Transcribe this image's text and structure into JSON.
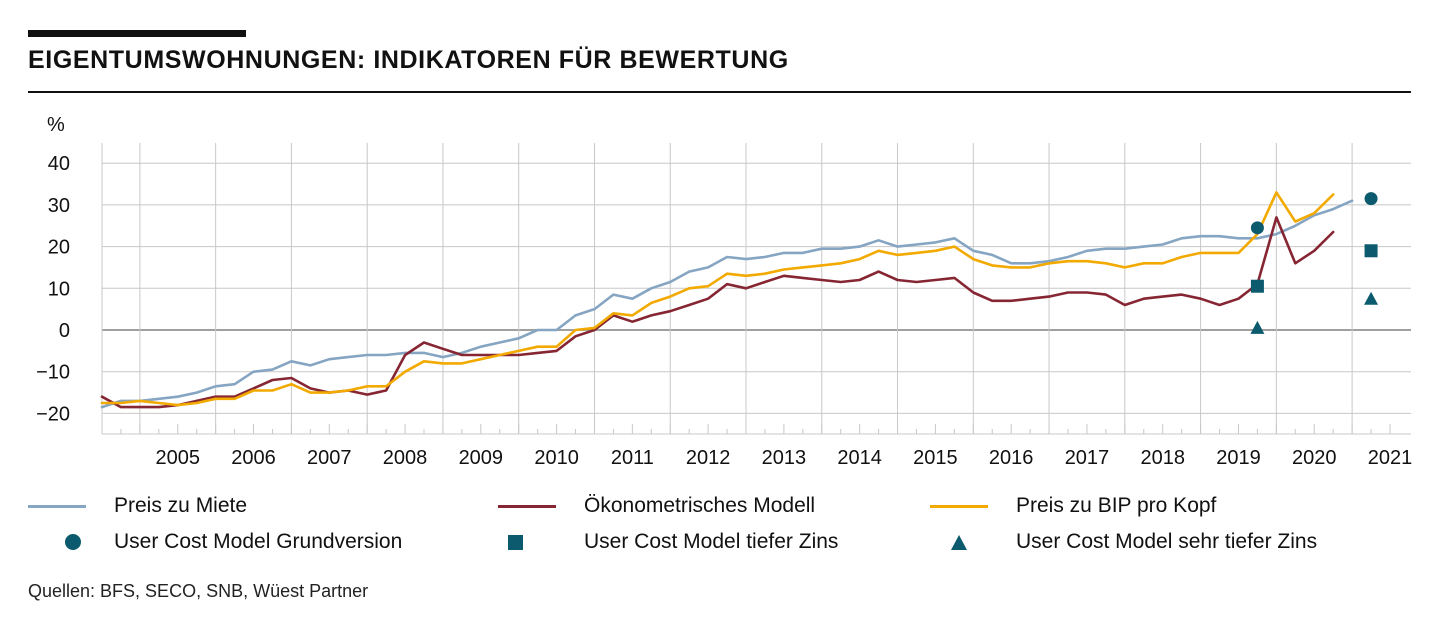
{
  "title": "EIGENTUMSWOHNUNGEN: INDIKATOREN FÜR BEWERTUNG",
  "source": "Quellen: BFS, SECO, SNB, Wüest Partner",
  "colors": {
    "miete": "#86a5c2",
    "oekonometrisch": "#862633",
    "bip": "#f2a900",
    "ucm": "#0b5a6e",
    "grid": "#c8c8c8",
    "zero": "#a0a0a0"
  },
  "legend": {
    "miete": "Preis zu Miete",
    "oekonometrisch": "Ökonometrisches Modell",
    "bip": "Preis zu BIP pro Kopf",
    "ucm_grund": "User Cost Model Grundversion",
    "ucm_tief": "User Cost Model tiefer Zins",
    "ucm_sehr_tief": "User Cost Model sehr tiefer Zins"
  },
  "chart_data": {
    "type": "line",
    "ylabel": "%",
    "ylim": [
      -24,
      46
    ],
    "yticks": [
      "40",
      "30",
      "20",
      "10",
      "0",
      "−10",
      "−20"
    ],
    "ytick_values": [
      40,
      30,
      20,
      10,
      0,
      -10,
      -20
    ],
    "xlim": [
      2004.5,
      2021.85
    ],
    "year_labels": [
      "2005",
      "2006",
      "2007",
      "2008",
      "2009",
      "2010",
      "2011",
      "2012",
      "2013",
      "2014",
      "2015",
      "2016",
      "2017",
      "2018",
      "2019",
      "2020",
      "2021"
    ],
    "series": [
      {
        "key": "miete",
        "name": "Preis zu Miete",
        "start": 2004.5,
        "step": 0.25,
        "values": [
          -18.5,
          -17,
          -17,
          -16.5,
          -16,
          -15,
          -13.5,
          -13,
          -10,
          -9.5,
          -7.5,
          -8.5,
          -7,
          -6.5,
          -6,
          -6,
          -5.5,
          -5.5,
          -6.5,
          -5.5,
          -4,
          -3,
          -2,
          0,
          0,
          3.5,
          5,
          8.5,
          7.5,
          10,
          11.5,
          14,
          15,
          17.5,
          17,
          17.5,
          18.5,
          18.5,
          19.5,
          19.5,
          20,
          21.5,
          20,
          20.5,
          21,
          22,
          19,
          18,
          16,
          16,
          16.5,
          17.5,
          19,
          19.5,
          19.5,
          20,
          20.5,
          22,
          22.5,
          22.5,
          22,
          22,
          23,
          25,
          27.5,
          29,
          31
        ]
      },
      {
        "key": "oekonometrisch",
        "name": "Ökonometrisches Modell",
        "start": 2004.5,
        "step": 0.25,
        "values": [
          -16,
          -18.5,
          -18.5,
          -18.5,
          -18,
          -17,
          -16,
          -16,
          -14,
          -12,
          -11.5,
          -14,
          -15,
          -14.5,
          -15.5,
          -14.5,
          -6,
          -3,
          -4.5,
          -6,
          -6,
          -6,
          -6,
          -5.5,
          -5,
          -1.5,
          0,
          3.5,
          2,
          3.5,
          4.5,
          6,
          7.5,
          11,
          10,
          11.5,
          13,
          12.5,
          12,
          11.5,
          12,
          14,
          12,
          11.5,
          12,
          12.5,
          9,
          7,
          7,
          7.5,
          8,
          9,
          9,
          8.5,
          6,
          7.5,
          8,
          8.5,
          7.5,
          6,
          7.5,
          11,
          27,
          16,
          19,
          23.5
        ]
      },
      {
        "key": "bip",
        "name": "Preis zu BIP pro Kopf",
        "start": 2004.5,
        "step": 0.25,
        "values": [
          -17.5,
          -17.5,
          -17,
          -17.5,
          -18,
          -17.5,
          -16.5,
          -16.5,
          -14.5,
          -14.5,
          -13,
          -15,
          -15,
          -14.5,
          -13.5,
          -13.5,
          -10,
          -7.5,
          -8,
          -8,
          -7,
          -6,
          -5,
          -4,
          -4,
          0,
          0.5,
          4,
          3.5,
          6.5,
          8,
          10,
          10.5,
          13.5,
          13,
          13.5,
          14.5,
          15,
          15.5,
          16,
          17,
          19,
          18,
          18.5,
          19,
          20,
          17,
          15.5,
          15,
          15,
          16,
          16.5,
          16.5,
          16,
          15,
          16,
          16,
          17.5,
          18.5,
          18.5,
          18.5,
          23,
          33,
          26,
          28,
          32.5
        ]
      }
    ],
    "points": [
      {
        "key": "ucm_grund",
        "name": "User Cost Model Grundversion",
        "shape": "circle",
        "x": [
          2019.75,
          2021.25
        ],
        "y": [
          24.5,
          31.5
        ]
      },
      {
        "key": "ucm_tief",
        "name": "User Cost Model tiefer Zins",
        "shape": "square",
        "x": [
          2019.75,
          2021.25
        ],
        "y": [
          10.5,
          19
        ]
      },
      {
        "key": "ucm_sehr_tief",
        "name": "User Cost Model sehr tiefer Zins",
        "shape": "triangle",
        "x": [
          2019.75,
          2021.25
        ],
        "y": [
          0.5,
          7.5
        ]
      }
    ]
  }
}
